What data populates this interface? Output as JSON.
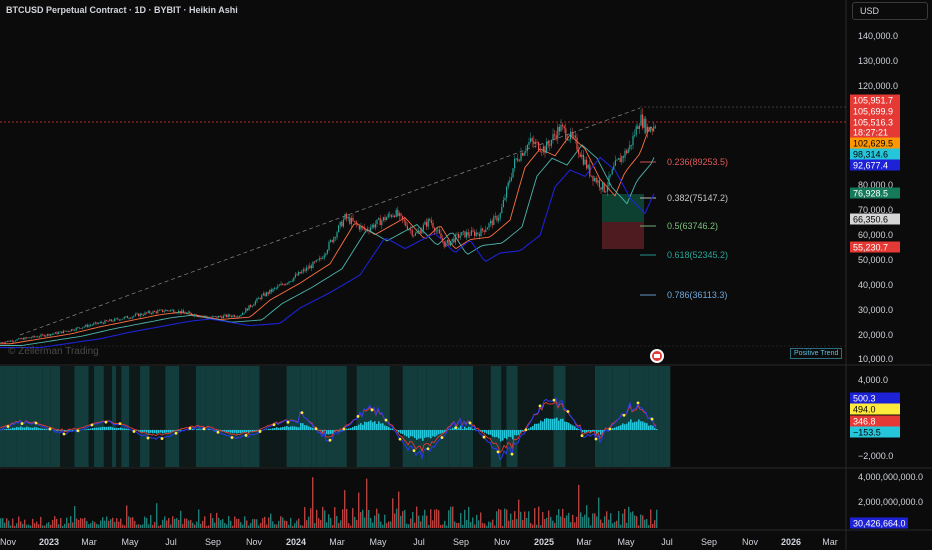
{
  "header": {
    "title": "BTCUSD Perpetual Contract · 1D · BYBIT · Heikin Ashi"
  },
  "currency_label": "USD",
  "watermark": "© Zellerman Trading",
  "trend_label": "Positive Trend",
  "price_axis": [
    "140,000.0",
    "130,000.0",
    "120,000.0",
    "80,000.0",
    "70,000.0",
    "60,000.0",
    "50,000.0",
    "40,000.0",
    "30,000.0",
    "20,000.0",
    "10,000.0"
  ],
  "price_tags": [
    {
      "text": "105,951.7",
      "bg": "#e53935",
      "fg": "#ffffff"
    },
    {
      "text": "105,699.9",
      "bg": "#e53935",
      "fg": "#ffffff"
    },
    {
      "text": "105,516.3",
      "bg": "#e53935",
      "fg": "#ffffff"
    },
    {
      "text": "18:27:21",
      "bg": "#e53935",
      "fg": "#ffffff"
    },
    {
      "text": "102,629.5",
      "bg": "#ff9800",
      "fg": "#000000"
    },
    {
      "text": "98,314.6",
      "bg": "#26c6da",
      "fg": "#000000"
    },
    {
      "text": "92,677.4",
      "bg": "#1e22d6",
      "fg": "#ffffff"
    },
    {
      "text": "76,928.5",
      "bg": "#157a5a",
      "fg": "#ffffff"
    },
    {
      "text": "66,350.6",
      "bg": "#d6d6d6",
      "fg": "#000000"
    },
    {
      "text": "55,230.7",
      "bg": "#e53935",
      "fg": "#ffffff"
    }
  ],
  "fib_levels": [
    {
      "label": "0.236(89253.5)",
      "color": "#e05a5a"
    },
    {
      "label": "0.382(75147.2)",
      "color": "#c8c8c8"
    },
    {
      "label": "0.5(63746.2)",
      "color": "#7cc27c"
    },
    {
      "label": "0.618(52345.2)",
      "color": "#26a69a"
    },
    {
      "label": "0.786(36113.3)",
      "color": "#6fa8dc"
    }
  ],
  "osc_axis": [
    "4,000.0",
    "−2,000.0"
  ],
  "osc_tags": [
    {
      "text": "500.3",
      "bg": "#1e22d6",
      "fg": "#ffffff"
    },
    {
      "text": "494.0",
      "bg": "#ffeb3b",
      "fg": "#000000"
    },
    {
      "text": "346.8",
      "bg": "#e53935",
      "fg": "#ffffff"
    },
    {
      "text": "−153.5",
      "bg": "#26c6da",
      "fg": "#000000"
    }
  ],
  "vol_axis": [
    "4,000,000,000.0",
    "2,000,000,000.0"
  ],
  "vol_tag": {
    "text": "30,426,664.0",
    "bg": "#1e22d6",
    "fg": "#ffffff"
  },
  "time_axis": [
    "Nov",
    "2023",
    "Mar",
    "May",
    "Jul",
    "Sep",
    "Nov",
    "2024",
    "Mar",
    "May",
    "Jul",
    "Sep",
    "Nov",
    "2025",
    "Mar",
    "May",
    "Jul",
    "Sep",
    "Nov",
    "2026",
    "Mar"
  ],
  "colors": {
    "up": "#26a69a",
    "down": "#ef5350",
    "bg": "#0b0b0b",
    "ema_fast": "#ff7043",
    "ema_mid": "#4db6ac",
    "ema_slow": "#1e22d6"
  },
  "price_series": [
    [
      0,
      17000
    ],
    [
      60,
      21000
    ],
    [
      90,
      24000
    ],
    [
      150,
      29000
    ],
    [
      170,
      30000
    ],
    [
      210,
      27000
    ],
    [
      240,
      28000
    ],
    [
      260,
      35000
    ],
    [
      290,
      42000
    ],
    [
      320,
      50000
    ],
    [
      345,
      67000
    ],
    [
      365,
      62000
    ],
    [
      395,
      69000
    ],
    [
      415,
      60000
    ],
    [
      430,
      66000
    ],
    [
      445,
      56000
    ],
    [
      460,
      60000
    ],
    [
      480,
      61000
    ],
    [
      500,
      68000
    ],
    [
      515,
      90000
    ],
    [
      530,
      98000
    ],
    [
      545,
      95000
    ],
    [
      560,
      104000
    ],
    [
      575,
      98000
    ],
    [
      590,
      85000
    ],
    [
      605,
      78000
    ],
    [
      615,
      88000
    ],
    [
      630,
      96000
    ],
    [
      640,
      108000
    ],
    [
      648,
      103000
    ],
    [
      656,
      105500
    ]
  ]
}
